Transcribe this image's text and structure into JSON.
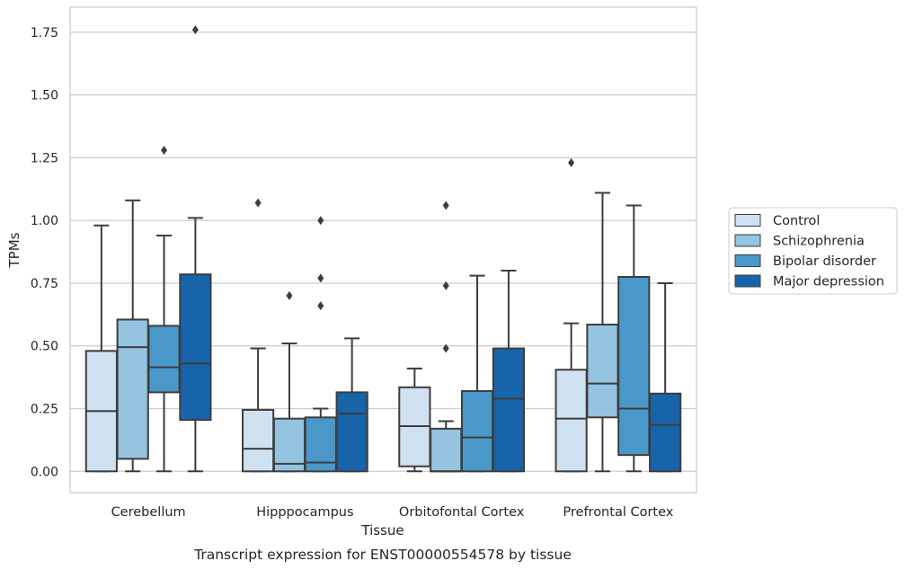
{
  "chart_data": {
    "type": "box",
    "title": "",
    "caption": "Transcript expression for ENST00000554578 by tissue",
    "xlabel": "Tissue",
    "ylabel": "TPMs",
    "ylim": [
      -0.085,
      1.85
    ],
    "yticks": [
      0.0,
      0.25,
      0.5,
      0.75,
      1.0,
      1.25,
      1.5,
      1.75
    ],
    "ytick_labels": [
      "0.00",
      "0.25",
      "0.50",
      "0.75",
      "1.00",
      "1.25",
      "1.50",
      "1.75"
    ],
    "grid": "horizontal",
    "legend_position": "right",
    "categories": [
      "Cerebellum",
      "Hipppocampus",
      "Orbitofontal Cortex",
      "Prefrontal Cortex"
    ],
    "series": [
      {
        "name": "Control",
        "color": "#d0e1f2",
        "boxes": [
          {
            "whislo": 0.0,
            "q1": 0.0,
            "med": 0.24,
            "q3": 0.48,
            "whishi": 0.98,
            "fliers": []
          },
          {
            "whislo": 0.0,
            "q1": 0.0,
            "med": 0.09,
            "q3": 0.245,
            "whishi": 0.49,
            "fliers": [
              1.07
            ]
          },
          {
            "whislo": 0.0,
            "q1": 0.02,
            "med": 0.18,
            "q3": 0.335,
            "whishi": 0.41,
            "fliers": []
          },
          {
            "whislo": 0.0,
            "q1": 0.0,
            "med": 0.21,
            "q3": 0.405,
            "whishi": 0.59,
            "fliers": [
              1.23
            ]
          }
        ]
      },
      {
        "name": "Schizophrenia",
        "color": "#94c4df",
        "boxes": [
          {
            "whislo": 0.0,
            "q1": 0.05,
            "med": 0.495,
            "q3": 0.605,
            "whishi": 1.08,
            "fliers": []
          },
          {
            "whislo": 0.0,
            "q1": 0.0,
            "med": 0.03,
            "q3": 0.21,
            "whishi": 0.51,
            "fliers": [
              0.7
            ]
          },
          {
            "whislo": 0.0,
            "q1": 0.0,
            "med": 0.0,
            "q3": 0.17,
            "whishi": 0.2,
            "fliers": [
              0.49,
              0.74,
              1.06
            ]
          },
          {
            "whislo": 0.0,
            "q1": 0.215,
            "med": 0.35,
            "q3": 0.585,
            "whishi": 1.11,
            "fliers": []
          }
        ]
      },
      {
        "name": "Bipolar disorder",
        "color": "#4a98c9",
        "boxes": [
          {
            "whislo": 0.0,
            "q1": 0.315,
            "med": 0.415,
            "q3": 0.58,
            "whishi": 0.94,
            "fliers": [
              1.28
            ]
          },
          {
            "whislo": 0.0,
            "q1": 0.0,
            "med": 0.035,
            "q3": 0.215,
            "whishi": 0.25,
            "fliers": [
              0.66,
              0.77,
              1.0
            ]
          },
          {
            "whislo": 0.0,
            "q1": 0.0,
            "med": 0.135,
            "q3": 0.32,
            "whishi": 0.78,
            "fliers": []
          },
          {
            "whislo": 0.0,
            "q1": 0.065,
            "med": 0.25,
            "q3": 0.775,
            "whishi": 1.06,
            "fliers": []
          }
        ]
      },
      {
        "name": "Major depression",
        "color": "#1764ab",
        "boxes": [
          {
            "whislo": 0.0,
            "q1": 0.205,
            "med": 0.43,
            "q3": 0.785,
            "whishi": 1.01,
            "fliers": [
              1.76
            ]
          },
          {
            "whislo": 0.0,
            "q1": 0.0,
            "med": 0.23,
            "q3": 0.315,
            "whishi": 0.53,
            "fliers": []
          },
          {
            "whislo": 0.0,
            "q1": 0.0,
            "med": 0.29,
            "q3": 0.49,
            "whishi": 0.8,
            "fliers": []
          },
          {
            "whislo": 0.0,
            "q1": 0.0,
            "med": 0.185,
            "q3": 0.31,
            "whishi": 0.75,
            "fliers": []
          }
        ]
      }
    ]
  }
}
